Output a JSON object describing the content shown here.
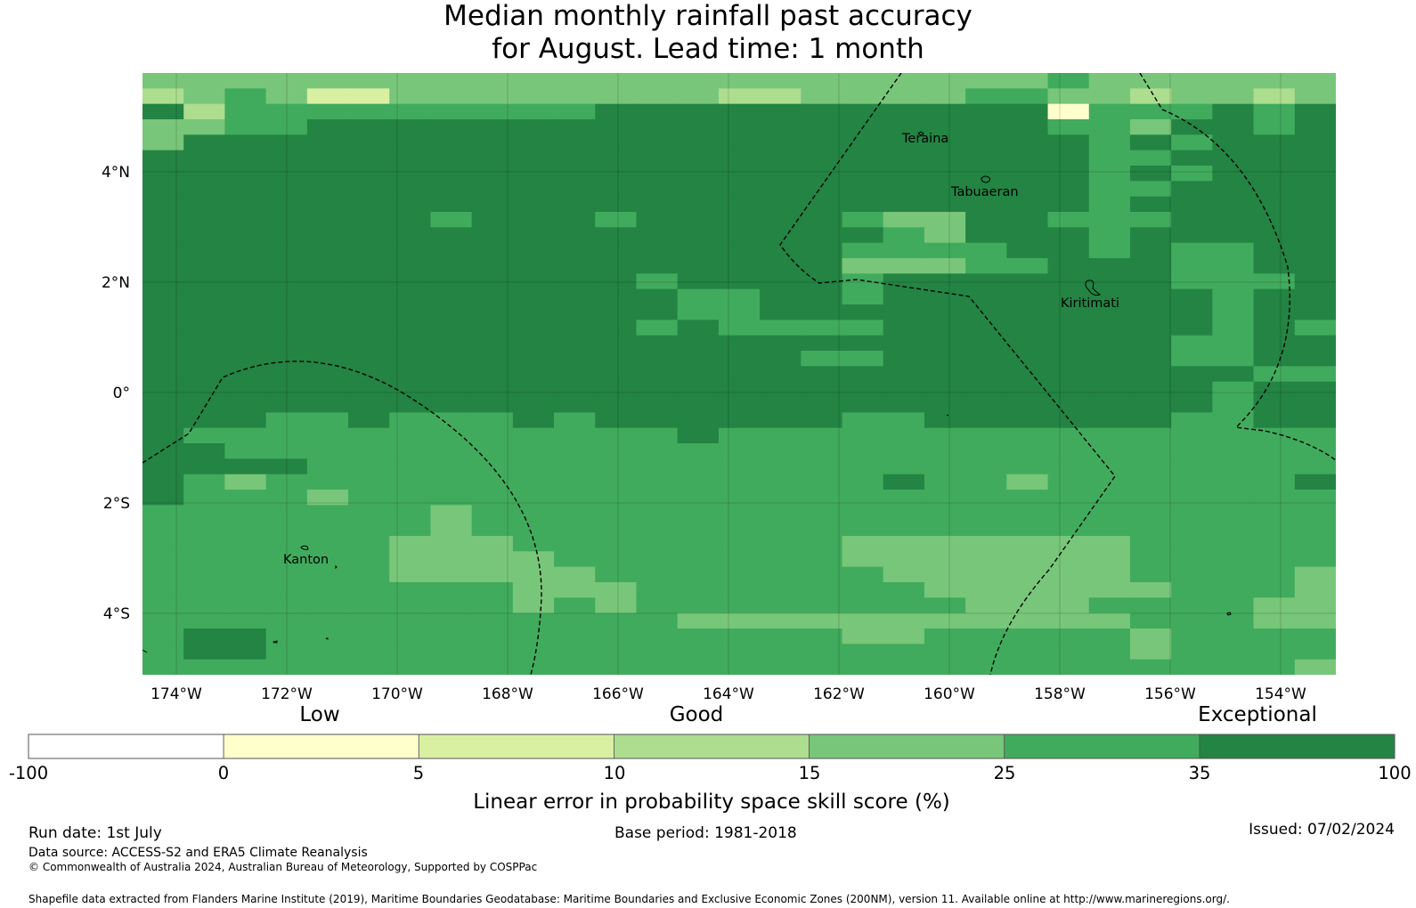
{
  "title": {
    "line1": "Median monthly rainfall past accuracy",
    "line2": "for August. Lead time: 1 month"
  },
  "map": {
    "lat_ticks": [
      "4°N",
      "2°N",
      "0°",
      "2°S",
      "4°S"
    ],
    "lon_ticks": [
      "174°W",
      "172°W",
      "170°W",
      "168°W",
      "166°W",
      "164°W",
      "162°W",
      "160°W",
      "158°W",
      "156°W",
      "154°W"
    ],
    "places": [
      "Teraina",
      "Tabuaeran",
      "Kiritimati",
      "Kanton"
    ],
    "grid_key": "0123456",
    "grid": [
      "44444444444444444444445444444",
      "34542244444444334444554434434",
      "63555555555666666666661555656",
      "44556666666666666666665546656",
      "46666666666666666666666565666",
      "66666666666666666666666556666",
      "66666666666666666666666565666",
      "66666666666666666666666556666",
      "66666666666666666666666566666",
      "66666665666566666544665556666",
      "66666666666666666654666566666",
      "66666666666666666555566565566",
      "66666666666666666444556665566",
      "66666666666656666566666665556",
      "66666666666665566566666666566",
      "66666666666665566666666666566",
      "66666666666656555566666666565",
      "66666666666666666666666665566",
      "66666666666666665566666665566",
      "66666666666666666666666666655",
      "66666666666666666666666666566",
      "66666666666666666666666666566",
      "66655655565666666556666665566",
      "65555555555556555555555555555",
      "66555555555555555555555555555",
      "66665555555555555555555555555",
      "65455555555555555565545555556",
      "65554555555555555555555555555",
      "55555554555555555555555555555",
      "55555554555555555555555555555",
      "55555544455555555444444455555",
      "55555544445555555444444455555",
      "55555544444555555544444455554",
      "55555555544455555554444445554",
      "55555555545455555555444555544",
      "55555555555554444444444455544",
      "56655555555555555445555545555",
      "56655555555555555555555545555",
      "55555555555555555555555555554"
    ],
    "cells": [
      "455445544444544455545544545",
      "454444555555566666555566",
      "666555555666666666666666666",
      "556666666666666666666666656",
      "666666666666666666666666666",
      "666666666666666666665666666",
      "666666666666666666666666666",
      "666666666666666666666666666",
      "666666666666666666666666666"
    ]
  },
  "legend": {
    "categories": [
      "Low",
      "Good",
      "Exceptional"
    ],
    "boundaries": [
      "-100",
      "0",
      "5",
      "10",
      "15",
      "25",
      "35",
      "100"
    ],
    "colors": [
      "#ffffff",
      "#ffffcc",
      "#d9f0a3",
      "#addd8e",
      "#78c679",
      "#41ab5d",
      "#238443"
    ],
    "axis_label": "Linear error in probability space skill score (%)"
  },
  "footer": {
    "run_date": "Run date: 1st July",
    "base_period": "Base period: 1981-2018",
    "issued": "Issued: 07/02/2024",
    "data_source": "Data source: ACCESS-S2 and ERA5 Climate Reanalysis",
    "copyright": "© Commonwealth of Australia 2024, Australian Bureau of Meteorology, Supported by COSPPac",
    "shapefile": "Shapefile data extracted from Flanders Marine Institute (2019), Maritime Boundaries Geodatabase: Maritime Boundaries and Exclusive Economic Zones (200NM), version 11. Available online at http://www.marineregions.org/."
  }
}
